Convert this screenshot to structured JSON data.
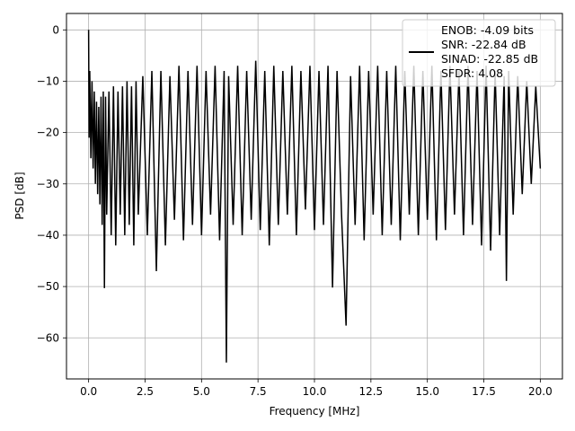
{
  "chart_data": {
    "type": "line",
    "title": "",
    "xlabel": "Frequency [MHz]",
    "ylabel": "PSD [dB]",
    "xlim": [
      -0.98,
      20.98
    ],
    "ylim": [
      -68.0,
      3.2
    ],
    "xticks": [
      0.0,
      2.5,
      5.0,
      7.5,
      10.0,
      12.5,
      15.0,
      17.5,
      20.0
    ],
    "xtick_labels": [
      "0.0",
      "2.5",
      "5.0",
      "7.5",
      "10.0",
      "12.5",
      "15.0",
      "17.5",
      "20.0"
    ],
    "yticks": [
      0,
      -10,
      -20,
      -30,
      -40,
      -50,
      -60
    ],
    "ytick_labels": [
      "0",
      "−10",
      "−20",
      "−30",
      "−40",
      "−50",
      "−60"
    ],
    "grid": true,
    "legend": {
      "placement": "top-right",
      "entries": [
        "ENOB: -4.09 bits",
        "SNR: -22.84 dB",
        "SINAD: -22.85 dB",
        "SFDR: 4.08"
      ]
    },
    "series": [
      {
        "color": "#000000",
        "x": [
          0.0,
          0.02,
          0.05,
          0.1,
          0.15,
          0.2,
          0.25,
          0.3,
          0.35,
          0.4,
          0.45,
          0.5,
          0.55,
          0.6,
          0.65,
          0.7,
          0.75,
          0.8,
          0.9,
          1.0,
          1.1,
          1.2,
          1.3,
          1.4,
          1.5,
          1.6,
          1.7,
          1.8,
          1.9,
          2.0,
          2.1,
          2.2,
          2.4,
          2.6,
          2.8,
          3.0,
          3.2,
          3.4,
          3.6,
          3.8,
          4.0,
          4.2,
          4.4,
          4.6,
          4.8,
          5.0,
          5.2,
          5.4,
          5.6,
          5.8,
          6.0,
          6.1,
          6.2,
          6.4,
          6.6,
          6.8,
          7.0,
          7.2,
          7.4,
          7.6,
          7.8,
          8.0,
          8.2,
          8.4,
          8.6,
          8.8,
          9.0,
          9.2,
          9.4,
          9.6,
          9.8,
          10.0,
          10.2,
          10.4,
          10.6,
          10.8,
          11.0,
          11.2,
          11.4,
          11.6,
          11.8,
          12.0,
          12.2,
          12.4,
          12.6,
          12.8,
          13.0,
          13.2,
          13.4,
          13.6,
          13.8,
          14.0,
          14.2,
          14.4,
          14.6,
          14.8,
          15.0,
          15.2,
          15.4,
          15.6,
          15.8,
          16.0,
          16.2,
          16.4,
          16.6,
          16.8,
          17.0,
          17.2,
          17.4,
          17.6,
          17.8,
          18.0,
          18.2,
          18.4,
          18.5,
          18.6,
          18.8,
          19.0,
          19.2,
          19.4,
          19.6,
          19.8,
          20.0
        ],
        "y": [
          0.0,
          -21.0,
          -8.0,
          -25.0,
          -10.0,
          -27.0,
          -12.0,
          -30.0,
          -14.0,
          -32.0,
          -15.0,
          -34.0,
          -13.0,
          -38.0,
          -12.0,
          -50.3,
          -13.0,
          -36.0,
          -12.0,
          -40.0,
          -11.0,
          -42.0,
          -12.0,
          -36.0,
          -11.0,
          -40.0,
          -10.0,
          -38.0,
          -11.0,
          -42.0,
          -10.0,
          -36.0,
          -9.0,
          -40.0,
          -8.0,
          -47.0,
          -8.0,
          -42.0,
          -9.0,
          -37.0,
          -7.0,
          -41.0,
          -8.0,
          -38.0,
          -7.0,
          -40.0,
          -8.0,
          -36.0,
          -7.0,
          -41.0,
          -8.0,
          -64.8,
          -9.0,
          -38.0,
          -7.0,
          -40.0,
          -8.0,
          -37.0,
          -6.0,
          -39.0,
          -8.0,
          -42.0,
          -7.0,
          -38.0,
          -8.0,
          -36.0,
          -7.0,
          -40.0,
          -8.0,
          -35.0,
          -7.0,
          -39.0,
          -8.0,
          -38.0,
          -7.0,
          -50.2,
          -8.0,
          -36.0,
          -57.6,
          -9.0,
          -38.0,
          -7.0,
          -41.0,
          -8.0,
          -36.0,
          -7.0,
          -40.0,
          -8.0,
          -38.0,
          -7.0,
          -41.0,
          -8.0,
          -36.0,
          -7.0,
          -40.0,
          -8.0,
          -37.0,
          -7.0,
          -41.0,
          -8.0,
          -39.0,
          -7.0,
          -36.0,
          -8.0,
          -40.0,
          -7.0,
          -38.0,
          -8.0,
          -42.0,
          -7.0,
          -43.0,
          -8.0,
          -40.0,
          -9.0,
          -48.9,
          -8.0,
          -36.0,
          -9.0,
          -32.0,
          -10.0,
          -30.0,
          -11.0,
          -27.0
        ]
      }
    ]
  }
}
